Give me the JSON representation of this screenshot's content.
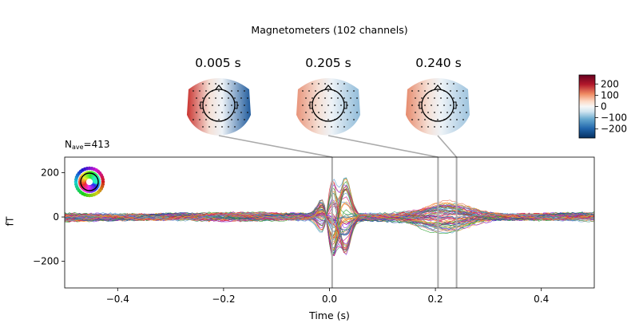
{
  "figure": {
    "suptitle": "Magnetometers (102 channels)",
    "nave_label": "N",
    "nave_sub": "ave",
    "nave_value": "=413"
  },
  "topomaps": [
    {
      "title": "0.005 s",
      "time": 0.005
    },
    {
      "title": "0.205 s",
      "time": 0.205
    },
    {
      "title": "0.240 s",
      "time": 0.24
    }
  ],
  "colorbar": {
    "ticks": [
      200,
      100,
      0,
      -100,
      -200
    ],
    "tick_labels": [
      "200",
      "100",
      "0",
      "−100",
      "−200"
    ],
    "range": [
      -280,
      280
    ],
    "cmap": "RdBu_r"
  },
  "chart_data": {
    "type": "line",
    "title": "",
    "xlabel": "Time (s)",
    "ylabel": "fT",
    "xlim": [
      -0.5,
      0.5
    ],
    "ylim": [
      -320,
      270
    ],
    "xticks": [
      -0.4,
      -0.2,
      0.0,
      0.2,
      0.4
    ],
    "xtick_labels": [
      "−0.4",
      "−0.2",
      "0.0",
      "0.2",
      "0.4"
    ],
    "yticks": [
      200,
      0,
      -200
    ],
    "ytick_labels": [
      "200",
      "0",
      "−200"
    ],
    "highlight_times": [
      0.005,
      0.205,
      0.24
    ],
    "series_color_sample": [
      "#2ca02c",
      "#ff7f0e",
      "#d62728",
      "#1f4e9c",
      "#8a2be2",
      "#e07a5f",
      "#3d9970",
      "#c71585",
      "#f2a93b",
      "#5e9ed6"
    ]
  }
}
